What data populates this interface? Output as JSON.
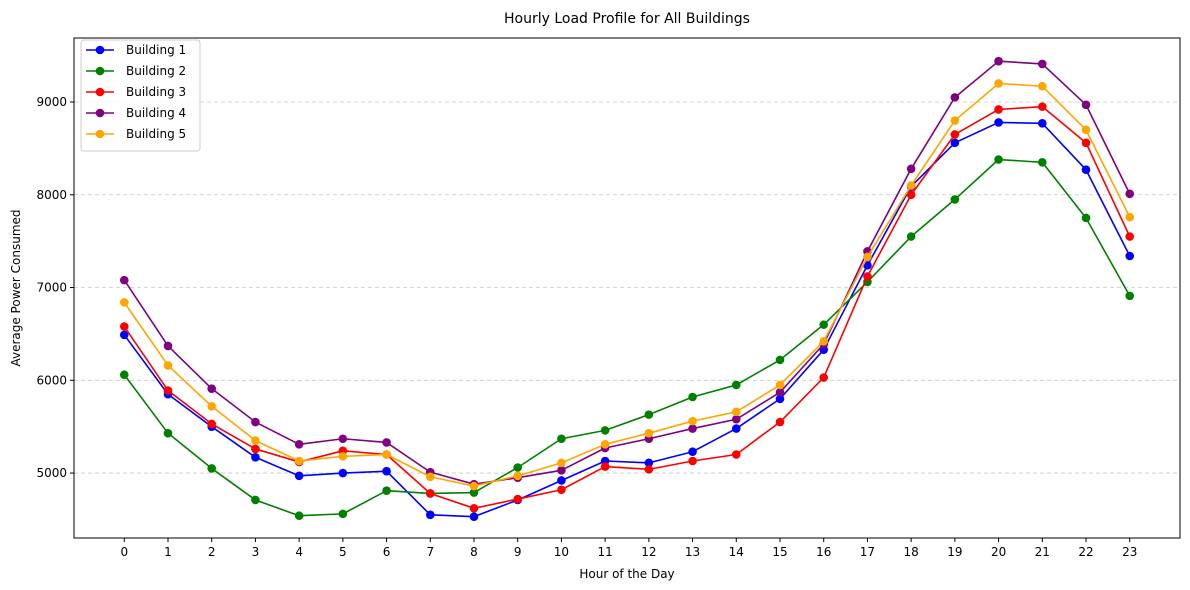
{
  "chart_data": {
    "type": "line",
    "title": "Hourly Load Profile for All Buildings",
    "xlabel": "Hour of the Day",
    "ylabel": "Average Power Consumed",
    "x": [
      0,
      1,
      2,
      3,
      4,
      5,
      6,
      7,
      8,
      9,
      10,
      11,
      12,
      13,
      14,
      15,
      16,
      17,
      18,
      19,
      20,
      21,
      22,
      23
    ],
    "xlim": [
      -1.15,
      24.15
    ],
    "ylim": [
      4300,
      9690
    ],
    "yticks": [
      5000,
      6000,
      7000,
      8000,
      9000
    ],
    "grid": "horizontal dashed",
    "legend_position": "top-left",
    "series": [
      {
        "name": "Building 1",
        "color": "#0000ff",
        "values": [
          6490,
          5850,
          5500,
          5170,
          4970,
          5000,
          5020,
          4550,
          4530,
          4710,
          4920,
          5130,
          5110,
          5230,
          5480,
          5800,
          6330,
          7240,
          8090,
          8560,
          8780,
          8770,
          8270,
          7340
        ]
      },
      {
        "name": "Building 2",
        "color": "#008000",
        "values": [
          6060,
          5430,
          5050,
          4710,
          4540,
          4560,
          4810,
          4780,
          4790,
          5060,
          5370,
          5460,
          5630,
          5820,
          5950,
          6220,
          6600,
          7060,
          7550,
          7950,
          8380,
          8350,
          7750,
          6910
        ]
      },
      {
        "name": "Building 3",
        "color": "#ff0000",
        "values": [
          6580,
          5890,
          5530,
          5260,
          5120,
          5240,
          5200,
          4780,
          4620,
          4720,
          4820,
          5070,
          5040,
          5130,
          5200,
          5550,
          6030,
          7120,
          8000,
          8650,
          8920,
          8950,
          8560,
          7550
        ]
      },
      {
        "name": "Building 4",
        "color": "#800080",
        "values": [
          7080,
          6370,
          5910,
          5550,
          5310,
          5370,
          5330,
          5010,
          4880,
          4950,
          5030,
          5270,
          5370,
          5480,
          5580,
          5870,
          6390,
          7390,
          8280,
          9050,
          9440,
          9410,
          8970,
          8010
        ]
      },
      {
        "name": "Building 5",
        "color": "#ffa500",
        "values": [
          6840,
          6160,
          5720,
          5350,
          5130,
          5180,
          5200,
          4960,
          4860,
          4970,
          5110,
          5310,
          5430,
          5560,
          5660,
          5950,
          6420,
          7330,
          8100,
          8800,
          9200,
          9170,
          8700,
          7760
        ]
      }
    ]
  }
}
